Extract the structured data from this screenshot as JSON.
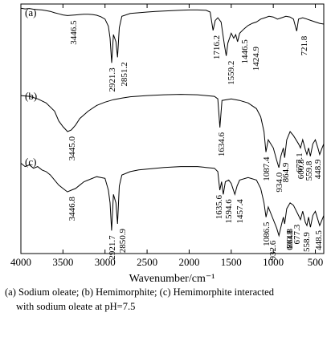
{
  "chart_data": {
    "type": "line",
    "xlabel": "Wavenumber/cm⁻¹",
    "xlim": [
      4000,
      400
    ],
    "x_reversed": true,
    "xticks": [
      4000,
      3500,
      3000,
      2500,
      2000,
      1500,
      1000,
      500
    ],
    "ylabel": "",
    "series": [
      {
        "name": "(a)",
        "points": [
          [
            4000,
            0.975
          ],
          [
            3950,
            0.965
          ],
          [
            3900,
            0.97
          ],
          [
            3850,
            0.96
          ],
          [
            3800,
            0.955
          ],
          [
            3750,
            0.95
          ],
          [
            3700,
            0.94
          ],
          [
            3650,
            0.93
          ],
          [
            3600,
            0.91
          ],
          [
            3550,
            0.895
          ],
          [
            3500,
            0.88
          ],
          [
            3446.5,
            0.87
          ],
          [
            3400,
            0.875
          ],
          [
            3350,
            0.88
          ],
          [
            3300,
            0.885
          ],
          [
            3250,
            0.89
          ],
          [
            3200,
            0.89
          ],
          [
            3150,
            0.885
          ],
          [
            3100,
            0.875
          ],
          [
            3050,
            0.855
          ],
          [
            3000,
            0.82
          ],
          [
            2960,
            0.72
          ],
          [
            2940,
            0.55
          ],
          [
            2921.3,
            0.2
          ],
          [
            2900,
            0.6
          ],
          [
            2870,
            0.5
          ],
          [
            2851.2,
            0.28
          ],
          [
            2830,
            0.7
          ],
          [
            2800,
            0.86
          ],
          [
            2700,
            0.9
          ],
          [
            2600,
            0.91
          ],
          [
            2500,
            0.92
          ],
          [
            2400,
            0.93
          ],
          [
            2300,
            0.935
          ],
          [
            2200,
            0.94
          ],
          [
            2100,
            0.945
          ],
          [
            2000,
            0.95
          ],
          [
            1900,
            0.95
          ],
          [
            1800,
            0.945
          ],
          [
            1750,
            0.92
          ],
          [
            1716.2,
            0.66
          ],
          [
            1690,
            0.8
          ],
          [
            1660,
            0.84
          ],
          [
            1620,
            0.78
          ],
          [
            1580,
            0.45
          ],
          [
            1559.2,
            0.3
          ],
          [
            1540,
            0.48
          ],
          [
            1500,
            0.62
          ],
          [
            1470,
            0.55
          ],
          [
            1446.5,
            0.6
          ],
          [
            1424.9,
            0.5
          ],
          [
            1400,
            0.62
          ],
          [
            1350,
            0.68
          ],
          [
            1300,
            0.73
          ],
          [
            1250,
            0.76
          ],
          [
            1200,
            0.78
          ],
          [
            1150,
            0.82
          ],
          [
            1100,
            0.84
          ],
          [
            1050,
            0.86
          ],
          [
            1000,
            0.85
          ],
          [
            950,
            0.82
          ],
          [
            900,
            0.84
          ],
          [
            850,
            0.86
          ],
          [
            800,
            0.85
          ],
          [
            760,
            0.82
          ],
          [
            721.8,
            0.65
          ],
          [
            700,
            0.82
          ],
          [
            650,
            0.84
          ],
          [
            600,
            0.82
          ],
          [
            550,
            0.8
          ],
          [
            500,
            0.78
          ],
          [
            450,
            0.76
          ],
          [
            400,
            0.75
          ]
        ],
        "labels": [
          "3446.5",
          "2921.3",
          "2851.2",
          "1716.2",
          "1559.2",
          "1446.5",
          "1424.9",
          "721.8"
        ]
      },
      {
        "name": "(b)",
        "points": [
          [
            4000,
            0.94
          ],
          [
            3900,
            0.93
          ],
          [
            3800,
            0.9
          ],
          [
            3700,
            0.85
          ],
          [
            3600,
            0.75
          ],
          [
            3550,
            0.63
          ],
          [
            3500,
            0.56
          ],
          [
            3445,
            0.5
          ],
          [
            3400,
            0.52
          ],
          [
            3350,
            0.58
          ],
          [
            3300,
            0.66
          ],
          [
            3200,
            0.75
          ],
          [
            3100,
            0.82
          ],
          [
            3000,
            0.86
          ],
          [
            2900,
            0.89
          ],
          [
            2800,
            0.91
          ],
          [
            2700,
            0.925
          ],
          [
            2500,
            0.94
          ],
          [
            2300,
            0.95
          ],
          [
            2100,
            0.955
          ],
          [
            1900,
            0.95
          ],
          [
            1800,
            0.94
          ],
          [
            1700,
            0.93
          ],
          [
            1660,
            0.9
          ],
          [
            1634.6,
            0.55
          ],
          [
            1610,
            0.88
          ],
          [
            1500,
            0.9
          ],
          [
            1400,
            0.88
          ],
          [
            1300,
            0.85
          ],
          [
            1200,
            0.78
          ],
          [
            1150,
            0.68
          ],
          [
            1110,
            0.5
          ],
          [
            1087.4,
            0.25
          ],
          [
            1060,
            0.4
          ],
          [
            1000,
            0.3
          ],
          [
            960,
            0.15
          ],
          [
            934,
            0.06
          ],
          [
            910,
            0.2
          ],
          [
            880,
            0.3
          ],
          [
            864.9,
            0.18
          ],
          [
            840,
            0.4
          ],
          [
            800,
            0.5
          ],
          [
            760,
            0.45
          ],
          [
            700,
            0.35
          ],
          [
            677.1,
            0.3
          ],
          [
            650,
            0.4
          ],
          [
            620,
            0.28
          ],
          [
            600.8,
            0.22
          ],
          [
            580,
            0.3
          ],
          [
            559.8,
            0.2
          ],
          [
            530,
            0.35
          ],
          [
            500,
            0.4
          ],
          [
            470,
            0.3
          ],
          [
            448.9,
            0.22
          ],
          [
            420,
            0.3
          ],
          [
            400,
            0.35
          ]
        ],
        "labels": [
          "3445.0",
          "1634.6",
          "1087.4",
          "934.0",
          "864.9",
          "677.1",
          "600.8",
          "559.8",
          "448.9"
        ]
      },
      {
        "name": "(c)",
        "points": [
          [
            4000,
            0.92
          ],
          [
            3950,
            0.88
          ],
          [
            3900,
            0.9
          ],
          [
            3850,
            0.86
          ],
          [
            3800,
            0.88
          ],
          [
            3750,
            0.84
          ],
          [
            3700,
            0.82
          ],
          [
            3650,
            0.78
          ],
          [
            3600,
            0.72
          ],
          [
            3550,
            0.66
          ],
          [
            3500,
            0.62
          ],
          [
            3446.8,
            0.58
          ],
          [
            3400,
            0.6
          ],
          [
            3350,
            0.62
          ],
          [
            3300,
            0.66
          ],
          [
            3250,
            0.7
          ],
          [
            3200,
            0.72
          ],
          [
            3100,
            0.76
          ],
          [
            3000,
            0.74
          ],
          [
            2960,
            0.6
          ],
          [
            2940,
            0.45
          ],
          [
            2921.7,
            0.12
          ],
          [
            2900,
            0.55
          ],
          [
            2870,
            0.45
          ],
          [
            2850.9,
            0.2
          ],
          [
            2830,
            0.65
          ],
          [
            2800,
            0.78
          ],
          [
            2700,
            0.82
          ],
          [
            2600,
            0.84
          ],
          [
            2500,
            0.85
          ],
          [
            2400,
            0.86
          ],
          [
            2300,
            0.87
          ],
          [
            2100,
            0.88
          ],
          [
            1900,
            0.88
          ],
          [
            1800,
            0.87
          ],
          [
            1700,
            0.86
          ],
          [
            1660,
            0.82
          ],
          [
            1635.6,
            0.6
          ],
          [
            1615,
            0.7
          ],
          [
            1594.6,
            0.55
          ],
          [
            1570,
            0.7
          ],
          [
            1530,
            0.72
          ],
          [
            1500,
            0.68
          ],
          [
            1457.4,
            0.55
          ],
          [
            1430,
            0.65
          ],
          [
            1400,
            0.72
          ],
          [
            1300,
            0.75
          ],
          [
            1200,
            0.72
          ],
          [
            1150,
            0.62
          ],
          [
            1110,
            0.45
          ],
          [
            1086.5,
            0.28
          ],
          [
            1060,
            0.4
          ],
          [
            1020,
            0.3
          ],
          [
            960,
            0.15
          ],
          [
            932.6,
            0.06
          ],
          [
            900,
            0.2
          ],
          [
            880,
            0.28
          ],
          [
            864.8,
            0.2
          ],
          [
            840,
            0.38
          ],
          [
            800,
            0.45
          ],
          [
            760,
            0.42
          ],
          [
            700,
            0.3
          ],
          [
            677.3,
            0.25
          ],
          [
            650,
            0.35
          ],
          [
            620,
            0.22
          ],
          [
            600.8,
            0.18
          ],
          [
            580,
            0.28
          ],
          [
            558.9,
            0.16
          ],
          [
            530,
            0.3
          ],
          [
            500,
            0.35
          ],
          [
            470,
            0.25
          ],
          [
            448.5,
            0.18
          ],
          [
            420,
            0.25
          ],
          [
            400,
            0.3
          ]
        ],
        "labels": [
          "3446.8",
          "2921.7",
          "2850.9",
          "1635.6",
          "1594.6",
          "1457.4",
          "1086.5",
          "932.6",
          "864.8",
          "677.3",
          "600.8",
          "558.9",
          "448.5"
        ]
      }
    ],
    "caption": [
      "(a) Sodium oleate; (b) Hemimorphite; (c) Hemimorphite interacted",
      "with sodium oleate at pH=7.5"
    ]
  }
}
